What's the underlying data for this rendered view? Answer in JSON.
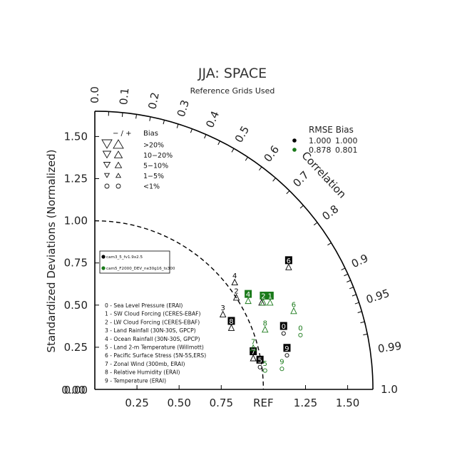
{
  "header": {
    "title": "JJA: SPACE",
    "subtitle": "Reference Grids Used"
  },
  "axis_labels": {
    "y": "Standardized Deviations (Normalized)",
    "arc": "Correlation",
    "x_ref": "REF"
  },
  "x_ticks": [
    "0.00",
    "0.25",
    "0.50",
    "0.75",
    "1.25",
    "1.50"
  ],
  "y_ticks": [
    "0.00",
    "0.25",
    "0.50",
    "0.75",
    "1.00",
    "1.25",
    "1.50"
  ],
  "corr_outer_labels": [
    "0.0",
    "0.1",
    "0.2",
    "0.3",
    "0.4",
    "0.5",
    "0.6",
    "0.7",
    "0.8",
    "0.9",
    "0.95",
    "0.99",
    "1.0"
  ],
  "bias_legend": {
    "header_signs": "− / +",
    "header_label": "Bias",
    "rows": [
      ">20%",
      "10−20%",
      "5−10%",
      "1−5%",
      "<1%"
    ]
  },
  "rmse_legend": {
    "header": "RMSE  Bias",
    "rows": [
      {
        "rmse": "1.000",
        "bias": "1.000",
        "color": "#000000"
      },
      {
        "rmse": "0.878",
        "bias": "0.801",
        "color": "#1a7a1a"
      }
    ]
  },
  "case_legend": [
    {
      "label": "cam3_5_fv1.9x2.5",
      "color": "#000000"
    },
    {
      "label": "cam5_F2000_DEV_ne30g16_ts300",
      "color": "#1a7a1a"
    }
  ],
  "variables": [
    "0 - Sea Level Pressure (ERAI)",
    "1 - SW Cloud Forcing (CERES-EBAF)",
    "2 - LW Cloud Forcing (CERES-EBAF)",
    "3 - Land Rainfall (30N-30S, GPCP)",
    "4 - Ocean Rainfall (30N-30S, GPCP)",
    "5 - Land 2-m Temperature (Willmott)",
    "6 - Pacific Surface Stress (5N-5S,ERS)",
    "7 - Zonal Wind (300mb, ERAI)",
    "8 - Relative Humidity (ERAI)",
    "9 - Temperature (ERAI)"
  ],
  "chart_data": {
    "type": "scatter",
    "title": "JJA: SPACE",
    "subtitle": "Reference Grids Used",
    "ylabel": "Standardized Deviations (Normalized)",
    "arc_label": "Correlation",
    "xlim": [
      0,
      1.65
    ],
    "ylim": [
      0,
      1.65
    ],
    "reference_arc_radius": 1.0,
    "series": [
      {
        "name": "cam3_5_fv1.9x2.5",
        "color": "#000000",
        "points": [
          {
            "id": "0",
            "x": 1.12,
            "y": 0.37,
            "marker": "circle",
            "boxed": true
          },
          {
            "id": "1",
            "x": 0.99,
            "y": 0.55,
            "marker": "triangle-up",
            "boxed": false
          },
          {
            "id": "2",
            "x": 0.84,
            "y": 0.58,
            "marker": "triangle-up",
            "boxed": false
          },
          {
            "id": "3",
            "x": 0.76,
            "y": 0.48,
            "marker": "triangle-up",
            "boxed": false
          },
          {
            "id": "4",
            "x": 0.83,
            "y": 0.67,
            "marker": "triangle-up",
            "boxed": false
          },
          {
            "id": "5",
            "x": 0.98,
            "y": 0.17,
            "marker": "circle",
            "boxed": true
          },
          {
            "id": "6",
            "x": 1.15,
            "y": 0.76,
            "marker": "triangle-up",
            "boxed": true
          },
          {
            "id": "7",
            "x": 0.94,
            "y": 0.22,
            "marker": "triangle-up",
            "boxed": true
          },
          {
            "id": "8",
            "x": 0.81,
            "y": 0.4,
            "marker": "triangle-up",
            "boxed": true
          },
          {
            "id": "9",
            "x": 1.14,
            "y": 0.24,
            "marker": "circle",
            "boxed": true
          }
        ]
      },
      {
        "name": "cam5_F2000_DEV_ne30g16_ts300",
        "color": "#1a7a1a",
        "points": [
          {
            "id": "0",
            "x": 1.22,
            "y": 0.36,
            "marker": "circle",
            "boxed": false
          },
          {
            "id": "1",
            "x": 1.04,
            "y": 0.55,
            "marker": "triangle-up",
            "boxed": true
          },
          {
            "id": "2",
            "x": 1.0,
            "y": 0.55,
            "marker": "triangle-up",
            "boxed": true
          },
          {
            "id": "4",
            "x": 0.91,
            "y": 0.56,
            "marker": "triangle-up",
            "boxed": true
          },
          {
            "id": "5",
            "x": 1.01,
            "y": 0.15,
            "marker": "circle",
            "boxed": false
          },
          {
            "id": "6",
            "x": 1.18,
            "y": 0.5,
            "marker": "triangle-up",
            "boxed": false
          },
          {
            "id": "7",
            "x": 0.94,
            "y": 0.28,
            "marker": "triangle-up",
            "boxed": false
          },
          {
            "id": "8",
            "x": 1.01,
            "y": 0.39,
            "marker": "triangle-up",
            "boxed": false
          },
          {
            "id": "9",
            "x": 1.11,
            "y": 0.16,
            "marker": "circle",
            "boxed": false
          }
        ]
      }
    ]
  }
}
